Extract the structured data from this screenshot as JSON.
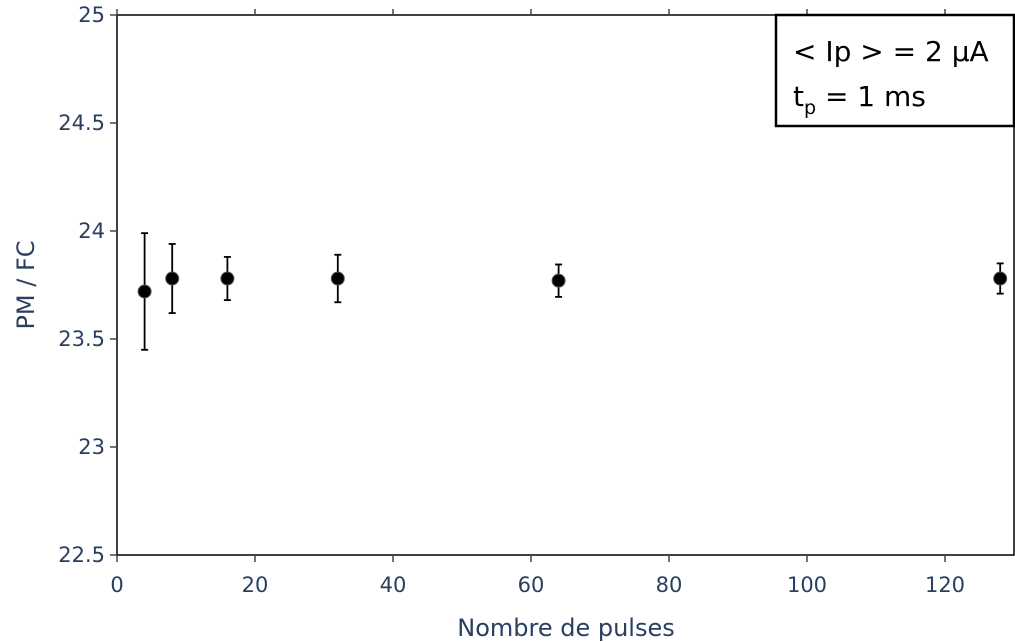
{
  "chart_data": {
    "type": "scatter",
    "title": "",
    "xlabel": "Nombre de pulses",
    "ylabel": "PM / FC",
    "xlim": [
      0,
      130
    ],
    "ylim": [
      22.5,
      25
    ],
    "x_ticks": [
      "0",
      "20",
      "40",
      "60",
      "80",
      "100",
      "120"
    ],
    "y_ticks": [
      "22.5",
      "23",
      "23.5",
      "24",
      "24.5",
      "25"
    ],
    "x_tick_values": [
      0,
      20,
      40,
      60,
      80,
      100,
      120
    ],
    "y_tick_values": [
      22.5,
      23,
      23.5,
      24,
      24.5,
      25
    ],
    "grid": false,
    "series": [
      {
        "x": [
          4,
          8,
          16,
          32,
          64,
          128
        ],
        "y": [
          23.72,
          23.78,
          23.78,
          23.78,
          23.77,
          23.78
        ],
        "error": [
          0.27,
          0.16,
          0.1,
          0.11,
          0.075,
          0.07
        ]
      }
    ],
    "annotation": {
      "line1": "< Ip > = 2 μA",
      "line2_main": "t",
      "line2_sub": "p",
      "line2_rest": " = 1 ms"
    },
    "colors": {
      "marker": "#000000",
      "axis_text": "#2a3f5f"
    }
  }
}
